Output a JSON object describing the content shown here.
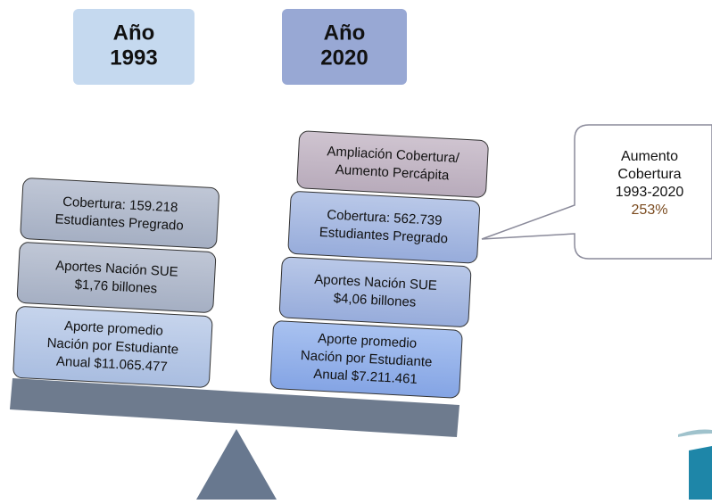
{
  "headers": [
    {
      "lines": [
        "Año",
        "1993"
      ]
    },
    {
      "lines": [
        "Año",
        "2020"
      ]
    }
  ],
  "left_stack": [
    {
      "lines": [
        "Cobertura: 159.218",
        "Estudiantes Pregrado"
      ]
    },
    {
      "lines": [
        "Aportes Nación SUE",
        "$1,76 billones"
      ]
    },
    {
      "lines": [
        "Aporte promedio",
        "Nación por Estudiante",
        "Anual $11.065.477"
      ]
    }
  ],
  "right_stack": [
    {
      "lines": [
        "Ampliación Cobertura/",
        "Aumento Percápita"
      ]
    },
    {
      "lines": [
        "Cobertura: 562.739",
        "Estudiantes Pregrado"
      ]
    },
    {
      "lines": [
        "Aportes Nación SUE",
        "$4,06 billones"
      ]
    },
    {
      "lines": [
        "Aporte promedio",
        "Nación por Estudiante",
        "Anual  $7.211.461"
      ]
    }
  ],
  "callout": {
    "lines": [
      "Aumento",
      "Cobertura",
      "1993-2020"
    ],
    "highlight": "253%"
  }
}
